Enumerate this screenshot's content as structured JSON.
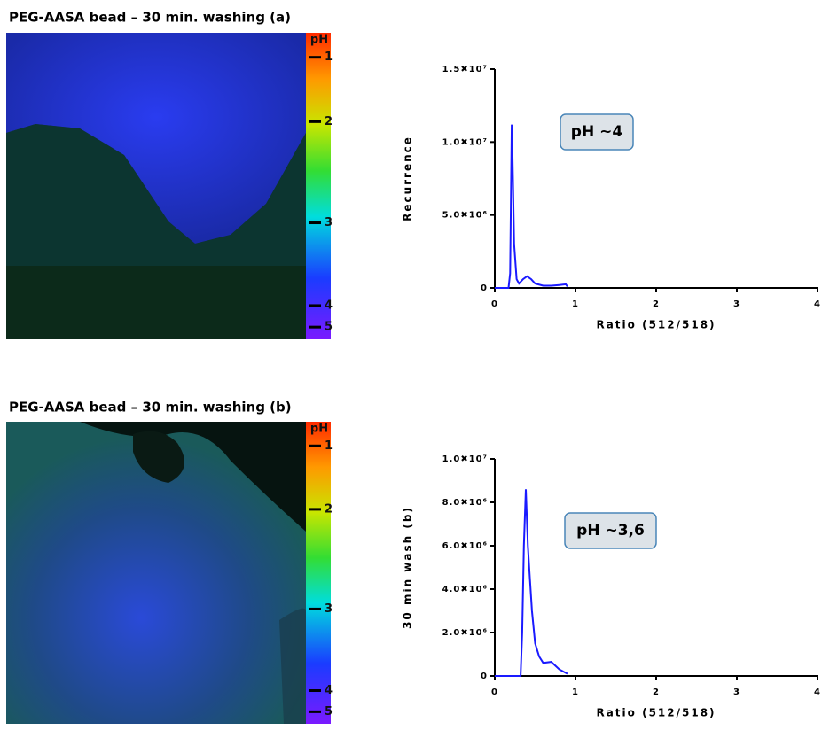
{
  "chart_data": [
    {
      "type": "line",
      "ylabel": "Recurrence",
      "xlabel": "Ratio (512/518)",
      "annotation": "pH ~4",
      "color": "#1a1aff",
      "x": [
        0,
        0.17,
        0.19,
        0.2,
        0.21,
        0.22,
        0.24,
        0.27,
        0.3,
        0.35,
        0.4,
        0.45,
        0.5,
        0.6,
        0.7,
        0.8,
        0.88,
        0.9
      ],
      "values": [
        0,
        0,
        1000000,
        6000000,
        11200000,
        9000000,
        3000000,
        600000,
        300000,
        600000,
        800000,
        600000,
        300000,
        150000,
        150000,
        200000,
        250000,
        100000
      ],
      "xlim": [
        0,
        4
      ],
      "xticks": [
        0,
        1,
        2,
        3,
        4
      ],
      "ylim": [
        0,
        15000000
      ],
      "yticks": [
        0,
        {
          "value": 5000000,
          "label": "5.0✖10⁶"
        },
        {
          "value": 10000000,
          "label": "1.0✖10⁷"
        },
        {
          "value": 15000000,
          "label": "1.5✖10⁷"
        }
      ]
    },
    {
      "type": "line",
      "ylabel": "30 min wash (b)",
      "xlabel": "Ratio (512/518)",
      "annotation": "pH ~3,6",
      "color": "#1a1aff",
      "x": [
        0,
        0.32,
        0.34,
        0.36,
        0.385,
        0.41,
        0.43,
        0.46,
        0.5,
        0.55,
        0.6,
        0.7,
        0.8,
        0.9
      ],
      "values": [
        0,
        0,
        2000000,
        6000000,
        8600000,
        6000000,
        4800000,
        3000000,
        1500000,
        900000,
        600000,
        650000,
        300000,
        100000
      ],
      "xlim": [
        0,
        4
      ],
      "xticks": [
        0,
        1,
        2,
        3,
        4
      ],
      "ylim": [
        0,
        10000000
      ],
      "yticks": [
        0,
        {
          "value": 2000000,
          "label": "2.0✖10⁶"
        },
        {
          "value": 4000000,
          "label": "4.0✖10⁶"
        },
        {
          "value": 6000000,
          "label": "6.0✖10⁶"
        },
        {
          "value": 8000000,
          "label": "8.0✖10⁶"
        },
        {
          "value": 10000000,
          "label": "1.0✖10⁷"
        }
      ]
    }
  ],
  "images": [
    {
      "title": "PEG-AASA bead – 30 min. washing (a)",
      "colorbar_title": "pH",
      "colorbar_labels": [
        "1",
        "2",
        "3",
        "4",
        "5"
      ]
    },
    {
      "title": "PEG-AASA bead – 30 min. washing (b)",
      "colorbar_title": "pH",
      "colorbar_labels": [
        "1",
        "2",
        "3",
        "4",
        "5"
      ]
    }
  ]
}
